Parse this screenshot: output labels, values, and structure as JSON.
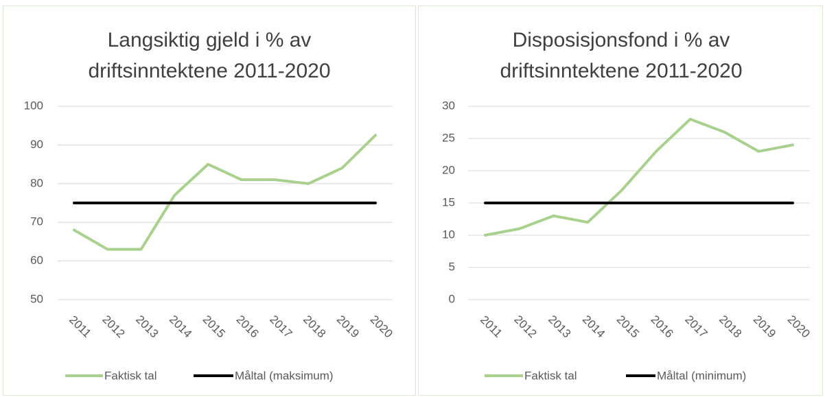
{
  "chart_data": [
    {
      "type": "line",
      "title": [
        "Langsiktig gjeld i % av",
        "driftsinntektene 2011-2020"
      ],
      "categories": [
        "2011",
        "2012",
        "2013",
        "2014",
        "2015",
        "2016",
        "2017",
        "2018",
        "2019",
        "2020"
      ],
      "series": [
        {
          "name": "Faktisk tal",
          "color": "#a9d18e",
          "values": [
            68,
            63,
            63,
            77,
            85,
            81,
            81,
            80,
            84,
            92.5
          ]
        },
        {
          "name": "Måltal (maksimum)",
          "color": "#000000",
          "values": [
            75,
            75,
            75,
            75,
            75,
            75,
            75,
            75,
            75,
            75
          ]
        }
      ],
      "ylim": [
        50,
        100
      ],
      "yticks": [
        50,
        60,
        70,
        80,
        90,
        100
      ],
      "grid": true,
      "legend": "bottom"
    },
    {
      "type": "line",
      "title": [
        "Disposisjonsfond i % av",
        "driftsinntektene 2011-2020"
      ],
      "categories": [
        "2011",
        "2012",
        "2013",
        "2014",
        "2015",
        "2016",
        "2017",
        "2018",
        "2019",
        "2020"
      ],
      "series": [
        {
          "name": "Faktisk tal",
          "color": "#a9d18e",
          "values": [
            10,
            11,
            13,
            12,
            17,
            23,
            28,
            26,
            23,
            24
          ]
        },
        {
          "name": "Måltal (minimum)",
          "color": "#000000",
          "values": [
            15,
            15,
            15,
            15,
            15,
            15,
            15,
            15,
            15,
            15
          ]
        }
      ],
      "ylim": [
        0,
        30
      ],
      "yticks": [
        0,
        5,
        10,
        15,
        20,
        25,
        30
      ],
      "grid": true,
      "legend": "bottom"
    }
  ]
}
